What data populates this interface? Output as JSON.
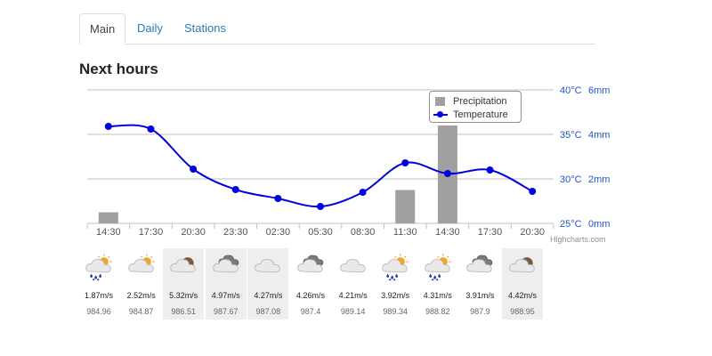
{
  "tabs": [
    {
      "label": "Main",
      "active": true
    },
    {
      "label": "Daily",
      "active": false
    },
    {
      "label": "Stations",
      "active": false
    }
  ],
  "section_title": "Next hours",
  "credits": "Highcharts.com",
  "legend": {
    "precipitation": "Precipitation",
    "temperature": "Temperature"
  },
  "colors": {
    "temperature_line": "#0000dd",
    "precip_bar": "#a0a0a0",
    "axis_label_blue": "#2255cc",
    "grid": "#c0c0c0"
  },
  "chart_data": {
    "type": "line",
    "categories": [
      "14:30",
      "17:30",
      "20:30",
      "23:30",
      "02:30",
      "05:30",
      "08:30",
      "11:30",
      "14:30",
      "17:30",
      "20:30"
    ],
    "series": [
      {
        "name": "Temperature",
        "values": [
          35.9,
          35.6,
          31.1,
          28.8,
          27.8,
          26.9,
          28.5,
          31.8,
          30.6,
          31.0,
          28.6
        ]
      },
      {
        "name": "Precipitation",
        "values": [
          0.5,
          0,
          0,
          0,
          0,
          0,
          0,
          1.5,
          4.4,
          0,
          0
        ]
      }
    ],
    "temperature_axis": {
      "ticks": [
        "40°C",
        "35°C",
        "30°C",
        "25°C"
      ],
      "range": [
        25,
        40
      ]
    },
    "precipitation_axis": {
      "ticks": [
        "6mm",
        "4mm",
        "2mm",
        "0mm"
      ],
      "range": [
        0,
        6
      ]
    },
    "grid": true,
    "legend_placement": "top-right"
  },
  "forecast": [
    {
      "time": "14:30",
      "icon": "sun-cloud-rain-icon",
      "wind": "1.87m/s",
      "pressure": "984.96",
      "shaded": false
    },
    {
      "time": "17:30",
      "icon": "sun-cloud-icon",
      "wind": "2.52m/s",
      "pressure": "984.87",
      "shaded": false
    },
    {
      "time": "20:30",
      "icon": "moon-cloud-icon",
      "wind": "5.32m/s",
      "pressure": "986.51",
      "shaded": true
    },
    {
      "time": "23:30",
      "icon": "dark-cloud-icon",
      "wind": "4.97m/s",
      "pressure": "987.67",
      "shaded": true
    },
    {
      "time": "02:30",
      "icon": "cloud-icon",
      "wind": "4.27m/s",
      "pressure": "987.08",
      "shaded": true
    },
    {
      "time": "05:30",
      "icon": "dark-cloud-icon",
      "wind": "4.26m/s",
      "pressure": "987.4",
      "shaded": false
    },
    {
      "time": "08:30",
      "icon": "cloud-icon",
      "wind": "4.21m/s",
      "pressure": "989.14",
      "shaded": false
    },
    {
      "time": "11:30",
      "icon": "sun-cloud-rain-icon",
      "wind": "3.92m/s",
      "pressure": "989.34",
      "shaded": false
    },
    {
      "time": "14:30",
      "icon": "sun-cloud-rain-icon",
      "wind": "4.31m/s",
      "pressure": "988.82",
      "shaded": false
    },
    {
      "time": "17:30",
      "icon": "dark-cloud-icon",
      "wind": "3.91m/s",
      "pressure": "987.9",
      "shaded": false
    },
    {
      "time": "20:30",
      "icon": "moon-cloud-icon",
      "wind": "4.42m/s",
      "pressure": "988.95",
      "shaded": true
    }
  ]
}
